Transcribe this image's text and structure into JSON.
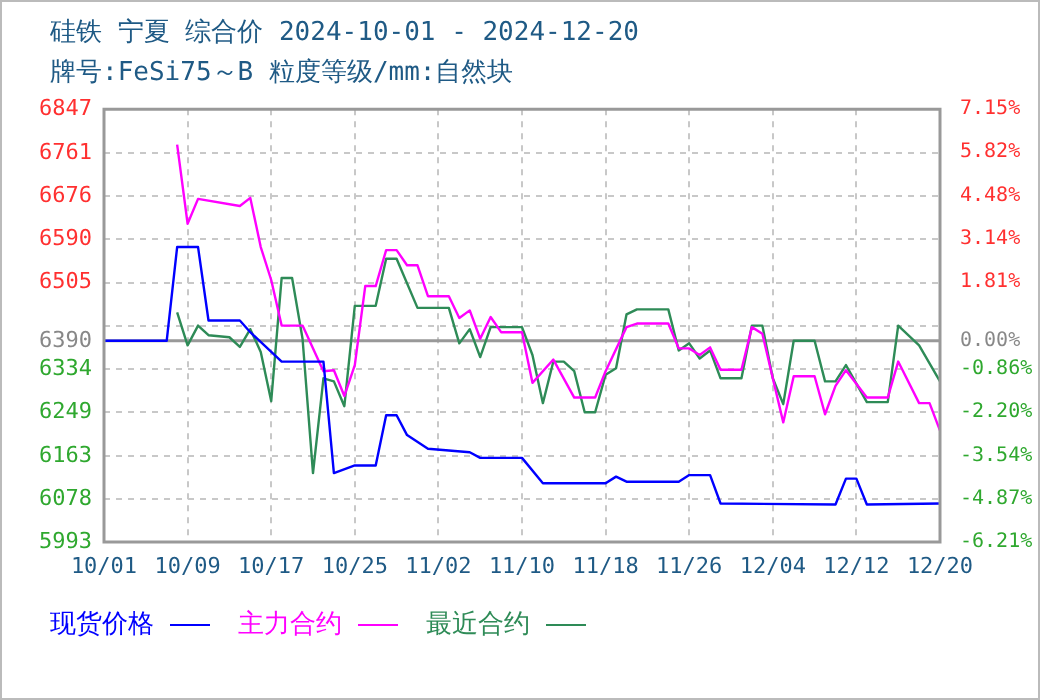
{
  "chart_data": {
    "type": "line",
    "title": "硅铁 宁夏 综合价 2024-10-01 - 2024-12-20",
    "subtitle": "牌号:FeSi75～B 粒度等级/mm:自然块",
    "series": [
      {
        "name": "现货价格",
        "color": "#0000ff",
        "x": [
          "--10-01",
          "--10-07",
          "--10-08",
          "--10-10",
          "--10-11",
          "--10-14",
          "--10-15",
          "--10-18",
          "--10-22",
          "--10-23",
          "--10-25",
          "--10-27",
          "--10-28",
          "--10-29",
          "--10-30",
          "--11-01",
          "--11-05",
          "--11-06",
          "--11-10",
          "--11-12",
          "--11-18",
          "--11-19",
          "--11-20",
          "--11-25",
          "--11-26",
          "--11-28",
          "--11-29",
          "--12-10",
          "--12-11",
          "--12-12",
          "--12-13",
          "--12-20"
        ],
        "values": [
          6390,
          6390,
          6575,
          6575,
          6430,
          6430,
          6407,
          6349,
          6349,
          6129,
          6144,
          6144,
          6243,
          6243,
          6204,
          6177,
          6170,
          6159,
          6159,
          6109,
          6109,
          6122,
          6112,
          6112,
          6125,
          6125,
          6069,
          6067,
          6118,
          6118,
          6067,
          6069
        ]
      },
      {
        "name": "主力合约",
        "color": "#ff00ff",
        "x": [
          "--10-08",
          "--10-09",
          "--10-10",
          "--10-14",
          "--10-15",
          "--10-16",
          "--10-17",
          "--10-18",
          "--10-20",
          "--10-22",
          "--10-23",
          "--10-24",
          "--10-25",
          "--10-26",
          "--10-27",
          "--10-28",
          "--10-29",
          "--10-30",
          "--10-31",
          "--11-01",
          "--11-03",
          "--11-04",
          "--11-05",
          "--11-06",
          "--11-07",
          "--11-08",
          "--11-10",
          "--11-11",
          "--11-13",
          "--11-15",
          "--11-17",
          "--11-18",
          "--11-20",
          "--11-21",
          "--11-24",
          "--11-25",
          "--11-26",
          "--11-27",
          "--11-28",
          "--11-29",
          "--12-01",
          "--12-02",
          "--12-03",
          "--12-04",
          "--12-05",
          "--12-06",
          "--12-08",
          "--12-09",
          "--12-10",
          "--12-11",
          "--12-13",
          "--12-15",
          "--12-16",
          "--12-18",
          "--12-19",
          "--12-20"
        ],
        "values": [
          6777,
          6621,
          6670,
          6656,
          6672,
          6575,
          6510,
          6420,
          6420,
          6330,
          6332,
          6281,
          6342,
          6498,
          6498,
          6569,
          6569,
          6539,
          6539,
          6478,
          6478,
          6435,
          6450,
          6394,
          6437,
          6407,
          6407,
          6307,
          6353,
          6278,
          6278,
          6330,
          6417,
          6424,
          6424,
          6375,
          6375,
          6362,
          6377,
          6333,
          6333,
          6417,
          6404,
          6316,
          6229,
          6320,
          6320,
          6245,
          6301,
          6332,
          6278,
          6278,
          6349,
          6267,
          6267,
          6213
        ]
      },
      {
        "name": "最近合约",
        "color": "#2e8b57",
        "x": [
          "--10-08",
          "--10-09",
          "--10-10",
          "--10-11",
          "--10-13",
          "--10-14",
          "--10-15",
          "--10-16",
          "--10-17",
          "--10-18",
          "--10-19",
          "--10-20",
          "--10-21",
          "--10-22",
          "--10-23",
          "--10-24",
          "--10-25",
          "--10-27",
          "--10-28",
          "--10-29",
          "--10-31",
          "--11-03",
          "--11-04",
          "--11-05",
          "--11-06",
          "--11-07",
          "--11-10",
          "--11-11",
          "--11-12",
          "--11-13",
          "--11-14",
          "--11-15",
          "--11-16",
          "--11-17",
          "--11-18",
          "--11-19",
          "--11-20",
          "--11-21",
          "--11-24",
          "--11-25",
          "--11-26",
          "--11-27",
          "--11-28",
          "--11-29",
          "--12-01",
          "--12-02",
          "--12-03",
          "--12-04",
          "--12-05",
          "--12-06",
          "--12-08",
          "--12-09",
          "--12-10",
          "--12-11",
          "--12-13",
          "--12-15",
          "--12-16",
          "--12-18",
          "--12-20"
        ],
        "values": [
          6446,
          6381,
          6420,
          6401,
          6397,
          6378,
          6413,
          6368,
          6271,
          6514,
          6514,
          6394,
          6129,
          6316,
          6310,
          6261,
          6459,
          6459,
          6552,
          6552,
          6455,
          6455,
          6385,
          6413,
          6358,
          6417,
          6417,
          6362,
          6267,
          6349,
          6349,
          6330,
          6249,
          6249,
          6323,
          6336,
          6442,
          6452,
          6452,
          6371,
          6385,
          6355,
          6371,
          6316,
          6316,
          6420,
          6420,
          6316,
          6265,
          6390,
          6390,
          6310,
          6310,
          6342,
          6269,
          6269,
          6420,
          6381,
          6310
        ]
      }
    ],
    "xlim": [
      "--10-01",
      "--12-20"
    ],
    "xticks": [
      {
        "value": "--10-01",
        "label": "10/01"
      },
      {
        "value": "--10-09",
        "label": "10/09"
      },
      {
        "value": "--10-17",
        "label": "10/17"
      },
      {
        "value": "--10-25",
        "label": "10/25"
      },
      {
        "value": "--11-02",
        "label": "11/02"
      },
      {
        "value": "--11-10",
        "label": "11/10"
      },
      {
        "value": "--11-18",
        "label": "11/18"
      },
      {
        "value": "--11-26",
        "label": "11/26"
      },
      {
        "value": "--12-04",
        "label": "12/04"
      },
      {
        "value": "--12-12",
        "label": "12/12"
      },
      {
        "value": "--12-20",
        "label": "12/20"
      }
    ],
    "ylim": [
      5993,
      6847
    ],
    "yticks": [
      6847,
      6761,
      6676,
      6590,
      6505,
      {
        "value": 6420,
        "label": null
      },
      6390,
      6334,
      6249,
      6163,
      6078,
      5993
    ],
    "y2lim": [
      -6.21,
      7.15
    ],
    "y2ticks": [
      {
        "value": 7.15,
        "label": "7.15%"
      },
      {
        "value": 5.82,
        "label": "5.82%"
      },
      {
        "value": 4.48,
        "label": "4.48%"
      },
      {
        "value": 3.14,
        "label": "3.14%"
      },
      {
        "value": 1.81,
        "label": "1.81%"
      },
      {
        "value": 0.47,
        "label": null
      },
      {
        "value": 0,
        "label": "0.00%"
      },
      {
        "value": -0.86,
        "label": "-0.86%"
      },
      {
        "value": -2.2,
        "label": "-2.20%"
      },
      {
        "value": -3.54,
        "label": "-3.54%"
      },
      {
        "value": -4.87,
        "label": "-4.87%"
      },
      {
        "value": -6.21,
        "label": "-6.21%"
      }
    ],
    "ref_lines": [
      {
        "axis": "y",
        "value": 6390,
        "color": "#999999"
      }
    ],
    "grid": true,
    "legend": "bottom"
  }
}
